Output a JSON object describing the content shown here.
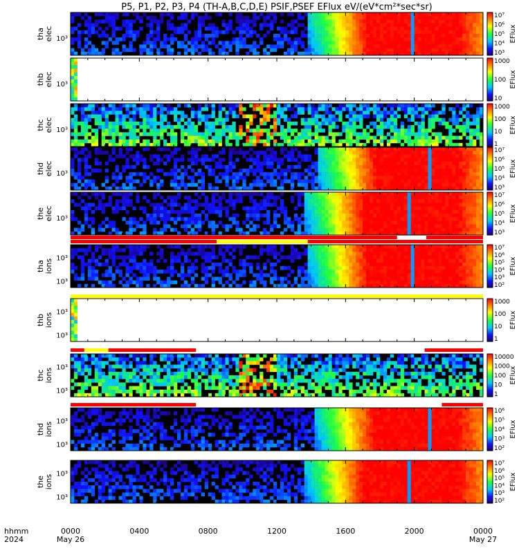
{
  "title": "P5, P1, P2, P3, P4 (TH-A,B,C,D,E) PSIF,PSEF EFlux eV/(eV*cm²*sec*sr)",
  "chart_data": {
    "type": "heatmap",
    "x_ticks": [
      "0000",
      "0400",
      "0800",
      "1200",
      "1600",
      "2000",
      "0000"
    ],
    "x_tick_hours": [
      0,
      4,
      8,
      12,
      16,
      20,
      24
    ],
    "x_dates": [
      "May 26",
      "May 27"
    ],
    "x_legend_top": "hhmm",
    "x_legend_bottom": "2024",
    "panels": [
      {
        "ylabel_1": "tha",
        "ylabel_2": "elec",
        "yticks": [
          "10³"
        ],
        "zlabel": "EFlux",
        "cbar_ticks": [
          "10⁷",
          "10⁶",
          "10⁵",
          "10⁴",
          "10³"
        ],
        "blank_after": null,
        "onset_hour": 13.8,
        "spike_hour": 19.9,
        "mode_bar": null
      },
      {
        "ylabel_1": "thb",
        "ylabel_2": "elec",
        "yticks": [
          "10³"
        ],
        "zlabel": "EFlux",
        "cbar_ticks": [
          "1000",
          "100",
          "10"
        ],
        "blank_after": 0.4,
        "onset_hour": null,
        "spike_hour": null,
        "mode_bar": null
      },
      {
        "ylabel_1": "thc",
        "ylabel_2": "elec",
        "yticks": [
          "10³"
        ],
        "zlabel": "EFlux",
        "cbar_ticks": [
          "1000",
          "100",
          "10",
          "1"
        ],
        "blank_after": null,
        "onset_hour": null,
        "spike_hour": null,
        "mode_bar": null,
        "gap": [
          9.8,
          12.0
        ]
      },
      {
        "ylabel_1": "thd",
        "ylabel_2": "elec",
        "yticks": [
          "10³"
        ],
        "zlabel": "EFlux",
        "cbar_ticks": [
          "10⁷",
          "10⁶",
          "10⁵",
          "10⁴",
          "10³"
        ],
        "blank_after": null,
        "onset_hour": 14.3,
        "spike_hour": 20.9,
        "mode_bar": null
      },
      {
        "ylabel_1": "the",
        "ylabel_2": "elec",
        "yticks": [
          "10³"
        ],
        "zlabel": "EFlux",
        "cbar_ticks": [
          "10⁷",
          "10⁶",
          "10⁵",
          "10⁴",
          "10³"
        ],
        "blank_after": null,
        "onset_hour": 13.6,
        "spike_hour": 19.7,
        "mode_bar": "a"
      },
      {
        "ylabel_1": "tha",
        "ylabel_2": "ions",
        "yticks": [
          "10³",
          "10³"
        ],
        "zlabel": "EFlux",
        "cbar_ticks": [
          "10⁷",
          "10⁶",
          "10⁵",
          "10⁴",
          "10³",
          "10²"
        ],
        "blank_after": null,
        "onset_hour": 13.8,
        "spike_hour": 19.9,
        "mode_bar": "b"
      },
      {
        "ylabel_1": "thb",
        "ylabel_2": "ions",
        "yticks": [
          "10³",
          "10³"
        ],
        "zlabel": "EFlux",
        "cbar_ticks": [
          "1000",
          "100",
          "10",
          "1"
        ],
        "blank_after": 0.4,
        "onset_hour": null,
        "spike_hour": null,
        "mode_bar": "c"
      },
      {
        "ylabel_1": "thc",
        "ylabel_2": "ions",
        "yticks": [
          "10³",
          "10³"
        ],
        "zlabel": "EFlux",
        "cbar_ticks": [
          "10000",
          "1000",
          "100",
          "10",
          "1"
        ],
        "blank_after": null,
        "onset_hour": null,
        "spike_hour": null,
        "mode_bar": "d",
        "gap": [
          9.8,
          12.0
        ]
      },
      {
        "ylabel_1": "thd",
        "ylabel_2": "ions",
        "yticks": [
          "10³",
          "10³"
        ],
        "zlabel": "EFlux",
        "cbar_ticks": [
          "10⁶",
          "10⁵",
          "10⁴",
          "10³",
          "10²"
        ],
        "blank_after": null,
        "onset_hour": 14.2,
        "spike_hour": 20.9,
        "mode_bar": "e"
      },
      {
        "ylabel_1": "the",
        "ylabel_2": "ions",
        "yticks": [
          "10³",
          "10³"
        ],
        "zlabel": "EFlux",
        "cbar_ticks": [
          "10⁷",
          "10⁶",
          "10⁵",
          "10⁴",
          "10³",
          "10²"
        ],
        "blank_after": null,
        "onset_hour": 13.6,
        "spike_hour": 19.7,
        "mode_bar": null
      }
    ],
    "mode_bars": {
      "a": [
        [
          0,
          19.0,
          "#ff0000"
        ],
        [
          19.0,
          20.7,
          "#ffffff"
        ],
        [
          20.7,
          24,
          "#ff0000"
        ]
      ],
      "b": [
        [
          0,
          8.5,
          "#ff0000"
        ],
        [
          8.5,
          13.8,
          "#ffff00"
        ],
        [
          13.8,
          24,
          "#ff0000"
        ]
      ],
      "c": [
        [
          0,
          24,
          "#ffff00"
        ]
      ],
      "d": [
        [
          0,
          0.8,
          "#ff0000"
        ],
        [
          0.8,
          2.2,
          "#ffff00"
        ],
        [
          2.2,
          7.3,
          "#ff0000"
        ],
        [
          7.3,
          20.6,
          "#ffffff"
        ],
        [
          20.6,
          24,
          "#ff0000"
        ]
      ],
      "e": [
        [
          0,
          7.3,
          "#ff0000"
        ],
        [
          7.3,
          21.6,
          "#ffffff"
        ],
        [
          21.6,
          24,
          "#ff0000"
        ]
      ]
    }
  }
}
